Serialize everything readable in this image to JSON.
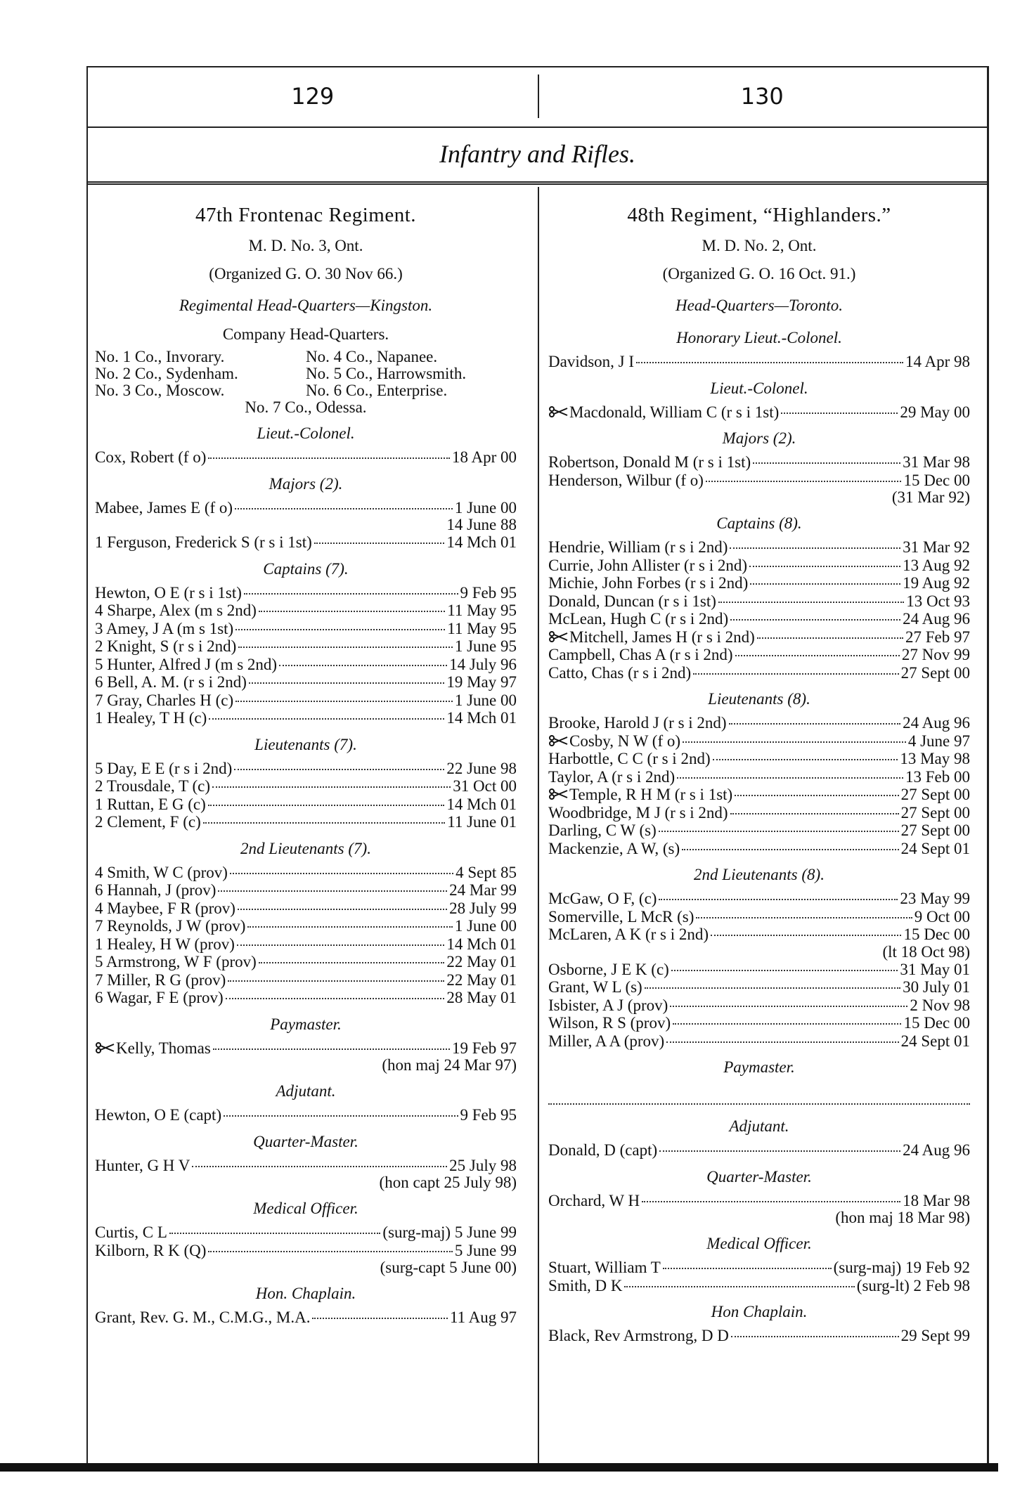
{
  "page_numbers": [
    "129",
    "130"
  ],
  "section_title": "Infantry and Rifles.",
  "columns": [
    {
      "rows": [
        {
          "kind": "title",
          "text": "47th Frontenac Regiment."
        },
        {
          "kind": "center",
          "text": "M. D. No. 3, Ont."
        },
        {
          "kind": "center",
          "text": "(Organized G. O. 30 Nov 66.)"
        },
        {
          "kind": "italic",
          "text": "Regimental Head-Quarters—Kingston."
        },
        {
          "kind": "center",
          "text": "Company Head-Quarters."
        },
        {
          "kind": "pair",
          "left": "No. 1 Co., Invorary.",
          "right": "No. 4 Co., Napanee."
        },
        {
          "kind": "pair",
          "left": "No. 2 Co., Sydenham.",
          "right": "No. 5 Co., Harrowsmith."
        },
        {
          "kind": "pair",
          "left": "No. 3 Co., Moscow.",
          "right": "No. 6 Co., Enterprise."
        },
        {
          "kind": "plain",
          "text": "No. 7 Co., Odessa."
        },
        {
          "kind": "italic",
          "text": "Lieut.-Colonel."
        },
        {
          "kind": "entry",
          "name": "Cox, Robert (f o)",
          "date": "18 Apr 00"
        },
        {
          "kind": "italic",
          "text": "Majors (2)."
        },
        {
          "kind": "entry",
          "name": "Mabee, James E (f o)",
          "date": "1 June 00"
        },
        {
          "kind": "note",
          "text": "14 June 88"
        },
        {
          "kind": "entry",
          "name": "1 Ferguson, Frederick S (r s i 1st)",
          "date": "14 Mch 01"
        },
        {
          "kind": "italic",
          "text": "Captains (7)."
        },
        {
          "kind": "entry",
          "name": "Hewton, O E (r s i 1st)",
          "date": "9 Feb 95"
        },
        {
          "kind": "entry",
          "name": "4 Sharpe, Alex (m s 2nd)",
          "date": "11 May 95"
        },
        {
          "kind": "entry",
          "name": "3 Amey, J A (m s 1st)",
          "date": "11 May 95"
        },
        {
          "kind": "entry",
          "name": "2 Knight, S (r s i 2nd)",
          "date": "1 June 95"
        },
        {
          "kind": "entry",
          "name": "5 Hunter, Alfred J (m s 2nd)",
          "date": "14 July 96"
        },
        {
          "kind": "entry",
          "name": "6 Bell, A. M. (r s i 2nd)",
          "date": "19 May 97"
        },
        {
          "kind": "entry",
          "name": "7 Gray, Charles H (c)",
          "date": "1 June 00"
        },
        {
          "kind": "entry",
          "name": "1 Healey, T H (c)",
          "date": "14 Mch 01"
        },
        {
          "kind": "italic",
          "text": "Lieutenants (7)."
        },
        {
          "kind": "entry",
          "name": "5 Day, E E (r s i 2nd)",
          "date": "22 June 98"
        },
        {
          "kind": "entry",
          "name": "2 Trousdale, T (c)",
          "date": "31 Oct 00"
        },
        {
          "kind": "entry",
          "name": "1 Ruttan, E G (c)",
          "date": "14 Mch 01"
        },
        {
          "kind": "entry",
          "name": "2 Clement, F (c)",
          "date": "11 June 01"
        },
        {
          "kind": "italic",
          "text": "2nd Lieutenants (7)."
        },
        {
          "kind": "entry",
          "name": "4 Smith, W C (prov)",
          "date": "4 Sept 85"
        },
        {
          "kind": "entry",
          "name": "6 Hannah, J (prov)",
          "date": "24 Mar 99"
        },
        {
          "kind": "entry",
          "name": "4 Maybee, F R (prov)",
          "date": "28 July 99"
        },
        {
          "kind": "entry",
          "name": "7 Reynolds, J W (prov)",
          "date": "1 June 00"
        },
        {
          "kind": "entry",
          "name": "1 Healey, H W (prov)",
          "date": "14 Mch 01"
        },
        {
          "kind": "entry",
          "name": "5 Armstrong, W F (prov)",
          "date": "22 May 01"
        },
        {
          "kind": "entry",
          "name": "7 Miller, R G (prov)",
          "date": "22 May 01"
        },
        {
          "kind": "entry",
          "name": "6 Wagar, F E (prov)",
          "date": "28 May 01"
        },
        {
          "kind": "italic",
          "text": "Paymaster."
        },
        {
          "kind": "entry",
          "mark": true,
          "name": "Kelly, Thomas",
          "date": "19 Feb 97"
        },
        {
          "kind": "note",
          "text": "(hon maj 24 Mar 97)"
        },
        {
          "kind": "italic",
          "text": "Adjutant."
        },
        {
          "kind": "entry",
          "name": "Hewton, O E (capt)",
          "date": "9 Feb 95"
        },
        {
          "kind": "italic",
          "text": "Quarter-Master."
        },
        {
          "kind": "entry",
          "name": "Hunter, G H V",
          "date": "25 July 98"
        },
        {
          "kind": "note",
          "text": "(hon capt 25 July 98)"
        },
        {
          "kind": "italic",
          "text": "Medical Officer."
        },
        {
          "kind": "entry",
          "name": "Curtis, C L",
          "date": "(surg-maj) 5 June 99"
        },
        {
          "kind": "entry",
          "name": "Kilborn, R K (Q)",
          "date": "5 June 99"
        },
        {
          "kind": "note",
          "text": "(surg-capt 5 June 00)"
        },
        {
          "kind": "italic",
          "text": "Hon. Chaplain."
        },
        {
          "kind": "entry",
          "name": "Grant, Rev. G. M., C.M.G., M.A.",
          "date": "11 Aug 97"
        }
      ]
    },
    {
      "rows": [
        {
          "kind": "title",
          "text": "48th Regiment, “Highlanders.”"
        },
        {
          "kind": "center",
          "text": "M. D. No. 2, Ont."
        },
        {
          "kind": "center",
          "text": "(Organized G. O. 16 Oct. 91.)"
        },
        {
          "kind": "italic",
          "text": "Head-Quarters—Toronto."
        },
        {
          "kind": "italic",
          "text": "Honorary Lieut.-Colonel."
        },
        {
          "kind": "entry",
          "name": "Davidson, J I",
          "date": "14 Apr 98"
        },
        {
          "kind": "italic",
          "text": "Lieut.-Colonel."
        },
        {
          "kind": "entry",
          "mark": true,
          "name": "Macdonald, William C (r s i 1st)",
          "date": "29 May 00"
        },
        {
          "kind": "italic",
          "text": "Majors (2)."
        },
        {
          "kind": "entry",
          "name": "Robertson, Donald M (r s i 1st)",
          "date": "31 Mar 98"
        },
        {
          "kind": "entry",
          "name": "Henderson, Wilbur (f o)",
          "date": "15 Dec 00"
        },
        {
          "kind": "note",
          "text": "(31 Mar 92)"
        },
        {
          "kind": "italic",
          "text": "Captains (8)."
        },
        {
          "kind": "entry",
          "name": "Hendrie, William (r s i 2nd)",
          "date": "31 Mar 92"
        },
        {
          "kind": "entry",
          "name": "Currie, John Allister (r s i 2nd)",
          "date": "13 Aug 92"
        },
        {
          "kind": "entry",
          "name": "Michie, John Forbes (r s i 2nd)",
          "date": "19 Aug 92"
        },
        {
          "kind": "entry",
          "name": "Donald, Duncan (r s i 1st)",
          "date": "13 Oct 93"
        },
        {
          "kind": "entry",
          "name": "McLean, Hugh C (r s i 2nd)",
          "date": "24 Aug 96"
        },
        {
          "kind": "entry",
          "mark": true,
          "name": "Mitchell, James H (r s i 2nd)",
          "date": "27 Feb 97"
        },
        {
          "kind": "entry",
          "name": "Campbell, Chas A (r s i 2nd)",
          "date": "27 Nov 99"
        },
        {
          "kind": "entry",
          "name": "Catto, Chas (r s i 2nd)",
          "date": "27 Sept 00"
        },
        {
          "kind": "italic",
          "text": "Lieutenants (8)."
        },
        {
          "kind": "entry",
          "name": "Brooke, Harold J (r s i 2nd)",
          "date": "24 Aug 96"
        },
        {
          "kind": "entry",
          "mark": true,
          "name": "Cosby, N W (f o)",
          "date": "4 June 97"
        },
        {
          "kind": "entry",
          "name": "Harbottle, C C (r s i 2nd)",
          "date": "13 May 98"
        },
        {
          "kind": "entry",
          "name": "Taylor, A (r s i 2nd)",
          "date": "13 Feb 00"
        },
        {
          "kind": "entry",
          "mark": true,
          "name": "Temple, R H M (r s i 1st)",
          "date": "27 Sept 00"
        },
        {
          "kind": "entry",
          "name": "Woodbridge, M J (r s i 2nd)",
          "date": "27 Sept 00"
        },
        {
          "kind": "entry",
          "name": "Darling, C W (s)",
          "date": "27 Sept 00"
        },
        {
          "kind": "entry",
          "name": "Mackenzie, A W, (s)",
          "date": "24 Sept 01"
        },
        {
          "kind": "italic",
          "text": "2nd Lieutenants (8)."
        },
        {
          "kind": "entry",
          "name": "McGaw, O F, (c)",
          "date": "23 May 99"
        },
        {
          "kind": "entry",
          "name": "Somerville, L McR (s)",
          "date": "9 Oct 00"
        },
        {
          "kind": "entry",
          "name": "McLaren, A K (r s i 2nd)",
          "date": "15 Dec 00"
        },
        {
          "kind": "note",
          "text": "(lt 18 Oct 98)"
        },
        {
          "kind": "entry",
          "name": "Osborne, J E K (c)",
          "date": "31 May 01"
        },
        {
          "kind": "entry",
          "name": "Grant, W L (s)",
          "date": "30 July 01"
        },
        {
          "kind": "entry",
          "name": "Isbister, A J (prov)",
          "date": "2 Nov 98"
        },
        {
          "kind": "entry",
          "name": "Wilson, R S (prov)",
          "date": "15 Dec 00"
        },
        {
          "kind": "entry",
          "name": "Miller, A A (prov)",
          "date": "24 Sept 01"
        },
        {
          "kind": "italic",
          "text": "Paymaster."
        },
        {
          "kind": "blank"
        },
        {
          "kind": "italic",
          "text": "Adjutant."
        },
        {
          "kind": "entry",
          "name": "Donald, D (capt)",
          "date": "24 Aug 96"
        },
        {
          "kind": "italic",
          "text": "Quarter-Master."
        },
        {
          "kind": "entry",
          "name": "Orchard, W H",
          "date": "18 Mar 98"
        },
        {
          "kind": "note",
          "text": "(hon maj 18 Mar 98)"
        },
        {
          "kind": "italic",
          "text": "Medical Officer."
        },
        {
          "kind": "entry",
          "name": "Stuart, William T",
          "date": "(surg-maj) 19 Feb 92"
        },
        {
          "kind": "entry",
          "name": "Smith, D K",
          "date": "(surg-lt) 2 Feb 98"
        },
        {
          "kind": "italic",
          "text": "Hon Chaplain."
        },
        {
          "kind": "entry",
          "name": "Black, Rev Armstrong, D D",
          "date": "29 Sept 99"
        }
      ]
    }
  ]
}
